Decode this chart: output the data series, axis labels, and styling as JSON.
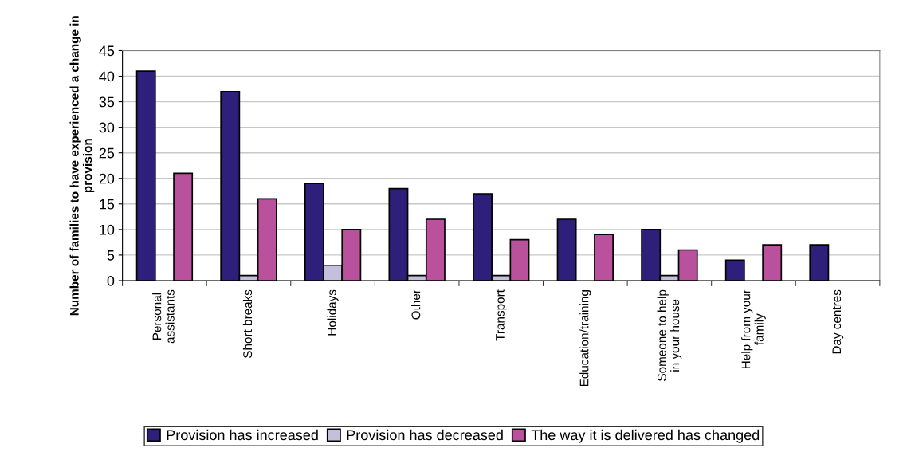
{
  "chart_data": {
    "type": "bar",
    "ylabel": "Number of families to have experienced a change in provision",
    "categories": [
      "Personal\nassistants",
      "Short breaks",
      "Holidays",
      "Other",
      "Transport",
      "Education/training",
      "Someone to help\nin your house",
      "Help from your\nfamily",
      "Day centres"
    ],
    "series": [
      {
        "name": "Provision has increased",
        "color": "#2e1f7a",
        "values": [
          41,
          37,
          19,
          18,
          17,
          12,
          10,
          4,
          7
        ]
      },
      {
        "name": "Provision has decreased",
        "color": "#c4bfdc",
        "values": [
          null,
          1,
          3,
          1,
          1,
          null,
          1,
          null,
          null
        ]
      },
      {
        "name": "The way it is delivered has changed",
        "color": "#b9519c",
        "values": [
          21,
          16,
          10,
          12,
          8,
          9,
          6,
          7,
          null
        ]
      }
    ],
    "ylim": [
      0,
      45
    ],
    "yticks": [
      0,
      5,
      10,
      15,
      20,
      25,
      30,
      35,
      40,
      45
    ],
    "grid": "y",
    "legend": "bottom"
  }
}
